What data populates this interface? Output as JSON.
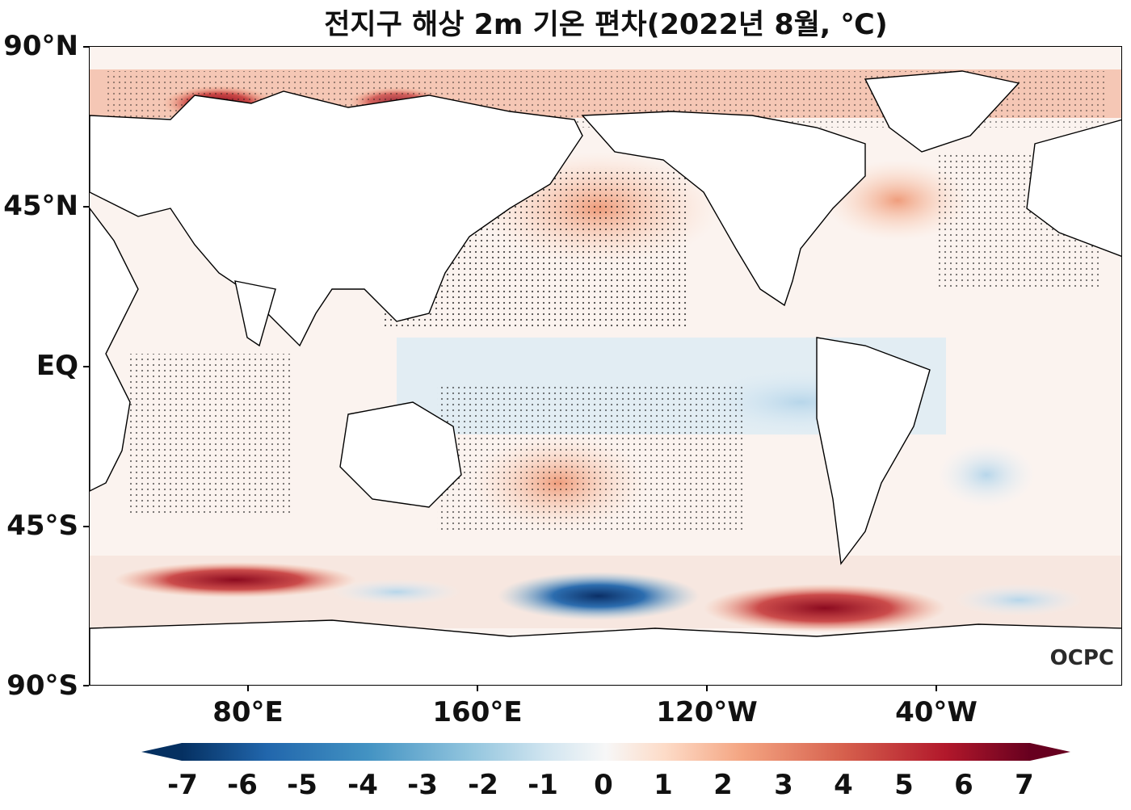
{
  "title": "전지구 해상 2m 기온 편차(2022년 8월, ℃)",
  "logo": "OCPC",
  "axes": {
    "y_ticks": [
      "90°N",
      "45°N",
      "EQ",
      "45°S",
      "90°S"
    ],
    "x_ticks": [
      "80°E",
      "160°E",
      "120°W",
      "40°W"
    ]
  },
  "colorbar": {
    "labels": [
      "-7",
      "-6",
      "-5",
      "-4",
      "-3",
      "-2",
      "-1",
      "0",
      "1",
      "2",
      "3",
      "4",
      "5",
      "6",
      "7"
    ],
    "colors": [
      "#053061",
      "#2166ac",
      "#4393c3",
      "#92c5de",
      "#d1e5f0",
      "#f7f7f7",
      "#fddbc7",
      "#f4a582",
      "#d6604d",
      "#b2182b",
      "#67001f"
    ],
    "extend": "both"
  }
}
